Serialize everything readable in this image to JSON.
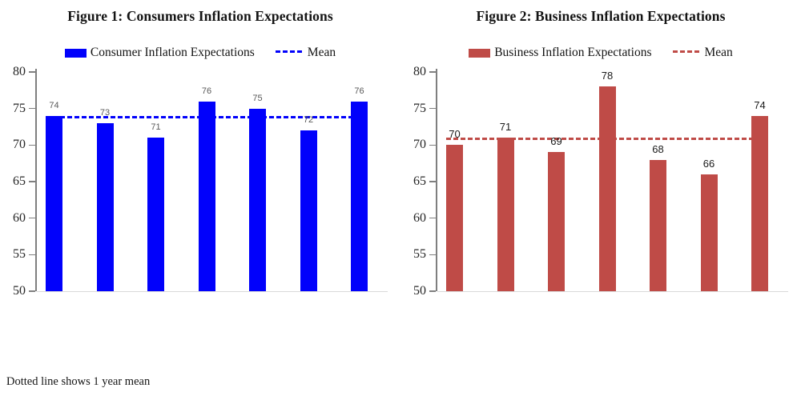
{
  "footnote": "Dotted line shows 1 year mean",
  "chart_data": [
    {
      "type": "bar",
      "title": "Figure 1: Consumers Inflation Expectations",
      "series_name": "Consumer Inflation Expectations",
      "mean_label": "Mean",
      "categories": [
        "",
        "",
        "",
        "",
        "",
        "",
        ""
      ],
      "values": [
        74,
        73,
        71,
        76,
        75,
        72,
        76
      ],
      "mean": 73.86,
      "ylim": [
        50,
        80
      ],
      "yticks": [
        50,
        55,
        60,
        65,
        70,
        75,
        80
      ],
      "xlabel": "",
      "ylabel": "",
      "grid": false,
      "legend_position": "top",
      "bar_color": "#0101FB",
      "mean_color": "#0101FB",
      "label_color": "#595959",
      "label_size": 11
    },
    {
      "type": "bar",
      "title": "Figure 2: Business Inflation Expectations",
      "series_name": "Business Inflation Expectations",
      "mean_label": "Mean",
      "categories": [
        "",
        "",
        "",
        "",
        "",
        "",
        ""
      ],
      "values": [
        70,
        71,
        69,
        78,
        68,
        66,
        74
      ],
      "mean": 70.86,
      "ylim": [
        50,
        80
      ],
      "yticks": [
        50,
        55,
        60,
        65,
        70,
        75,
        80
      ],
      "xlabel": "",
      "ylabel": "",
      "grid": false,
      "legend_position": "top",
      "bar_color": "#BF4B47",
      "mean_color": "#BF4B47",
      "label_color": "#1A1A1A",
      "label_size": 13
    }
  ]
}
